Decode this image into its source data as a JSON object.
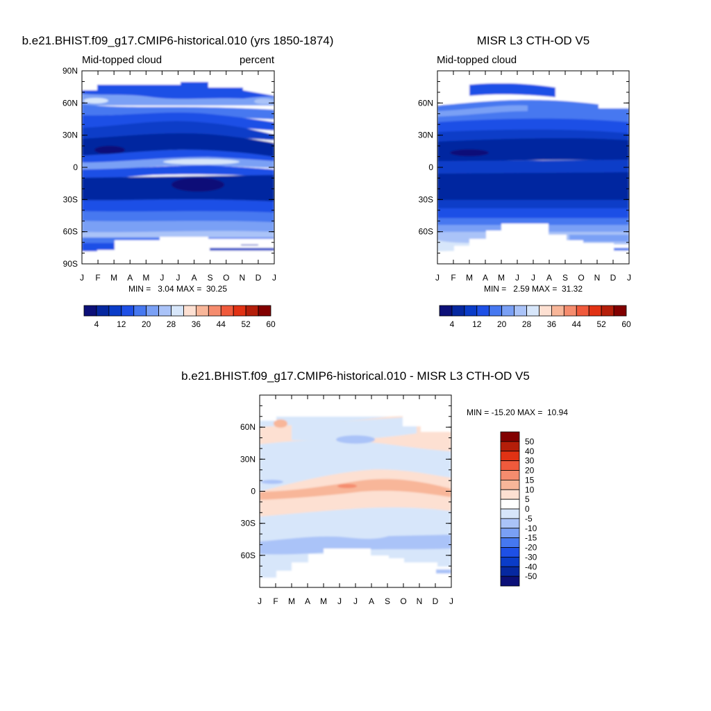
{
  "panels": [
    {
      "id": "model",
      "title": "b.e21.BHIST.f09_g17.CMIP6-historical.010 (yrs 1850-1874)",
      "left_label": "Mid-topped cloud",
      "right_label": "percent",
      "stats": "MIN =   3.04 MAX =  30.25"
    },
    {
      "id": "obs",
      "title": "MISR L3 CTH-OD V5",
      "left_label": "Mid-topped cloud",
      "right_label": "",
      "stats": "MIN =   2.59 MAX =  31.32"
    },
    {
      "id": "diff",
      "title": "b.e21.BHIST.f09_g17.CMIP6-historical.010 - MISR L3 CTH-OD V5",
      "left_label": "",
      "right_label": "",
      "stats": "MIN = -15.20 MAX =  10.94"
    }
  ],
  "chart_data": [
    {
      "type": "heatmap",
      "panel": "model",
      "title": "b.e21.BHIST.f09_g17.CMIP6-historical.010 (yrs 1850-1874)",
      "x_ticks": [
        "J",
        "F",
        "M",
        "A",
        "M",
        "J",
        "J",
        "A",
        "S",
        "O",
        "N",
        "D",
        "J"
      ],
      "y_ticks": [
        "90N",
        "60N",
        "30N",
        "0",
        "30S",
        "60S",
        "90S"
      ],
      "ylim": [
        -90,
        90
      ],
      "min": 3.04,
      "max": 30.25,
      "colorbar_labels": [
        "4",
        "12",
        "20",
        "28",
        "36",
        "44",
        "52",
        "60"
      ],
      "colorbar_colors": [
        "#0c1078",
        "#0628a0",
        "#0a3cc8",
        "#1e50e6",
        "#4678f0",
        "#7aa0f5",
        "#aac3f8",
        "#d7e6fa",
        "#fde0d2",
        "#f8b699",
        "#f58c6e",
        "#f05a3c",
        "#e13214",
        "#b41e0a",
        "#820000"
      ]
    },
    {
      "type": "heatmap",
      "panel": "obs",
      "title": "MISR L3 CTH-OD V5",
      "x_ticks": [
        "J",
        "F",
        "M",
        "A",
        "M",
        "J",
        "J",
        "A",
        "S",
        "O",
        "N",
        "D",
        "J"
      ],
      "y_ticks": [
        "60N",
        "30N",
        "0",
        "30S",
        "60S"
      ],
      "min": 2.59,
      "max": 31.32,
      "colorbar_labels": [
        "4",
        "12",
        "20",
        "28",
        "36",
        "44",
        "52",
        "60"
      ]
    },
    {
      "type": "heatmap",
      "panel": "diff",
      "title": "b.e21.BHIST.f09_g17.CMIP6-historical.010 - MISR L3 CTH-OD V5",
      "x_ticks": [
        "J",
        "F",
        "M",
        "A",
        "M",
        "J",
        "J",
        "A",
        "S",
        "O",
        "N",
        "D",
        "J"
      ],
      "y_ticks": [
        "60N",
        "30N",
        "0",
        "30S",
        "60S"
      ],
      "min": -15.2,
      "max": 10.94,
      "colorbar_labels": [
        "50",
        "40",
        "30",
        "20",
        "15",
        "10",
        "5",
        "0",
        "-5",
        "-10",
        "-15",
        "-20",
        "-30",
        "-40",
        "-50"
      ],
      "colorbar_colors": [
        "#820000",
        "#b41e0a",
        "#e13214",
        "#f05a3c",
        "#f58c6e",
        "#f8b699",
        "#fde0d2",
        "#ffffff",
        "#d7e6fa",
        "#aac3f8",
        "#7aa0f5",
        "#4678f0",
        "#1e50e6",
        "#0a3cc8",
        "#0628a0",
        "#0c1078"
      ]
    }
  ]
}
